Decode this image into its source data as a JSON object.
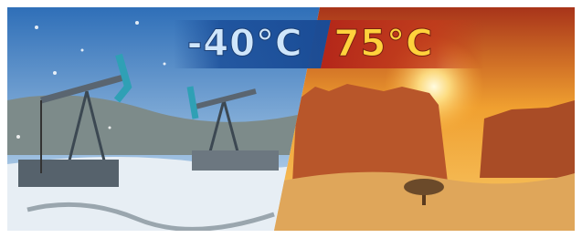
{
  "labels": {
    "cold": "-40°C",
    "hot": "75°C"
  }
}
